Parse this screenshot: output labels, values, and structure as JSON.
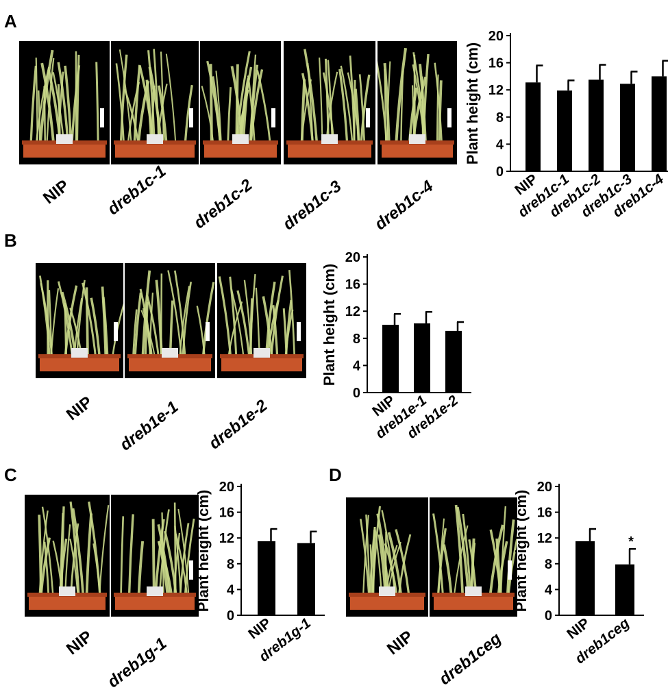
{
  "panels": {
    "A": {
      "letter": "A",
      "photo_labels": [
        "NIP",
        "dreb1c-1",
        "dreb1c-2",
        "dreb1c-3",
        "dreb1c-4"
      ]
    },
    "B": {
      "letter": "B",
      "photo_labels": [
        "NIP",
        "dreb1e-1",
        "dreb1e-2"
      ]
    },
    "C": {
      "letter": "C",
      "photo_labels": [
        "NIP",
        "dreb1g-1"
      ]
    },
    "D": {
      "letter": "D",
      "photo_labels": [
        "NIP",
        "dreb1ceg"
      ]
    }
  },
  "colors": {
    "bar": "#000000",
    "soil_tray": "#c8552a",
    "leaf": "#c9d88a",
    "photo_bg": "#000000"
  },
  "chart_data": [
    {
      "panel": "A",
      "type": "bar",
      "categories": [
        "NIP",
        "dreb1c-1",
        "dreb1c-2",
        "dreb1c-3",
        "dreb1c-4"
      ],
      "values": [
        13.1,
        11.9,
        13.5,
        12.9,
        14.0
      ],
      "errors": [
        2.5,
        1.5,
        2.2,
        1.8,
        2.3
      ],
      "ylabel": "Plant height (cm)",
      "ylim": [
        0,
        20
      ],
      "yticks": [
        0,
        4,
        8,
        12,
        16,
        20
      ],
      "annotations": []
    },
    {
      "panel": "B",
      "type": "bar",
      "categories": [
        "NIP",
        "dreb1e-1",
        "dreb1e-2"
      ],
      "values": [
        10.0,
        10.2,
        9.1
      ],
      "errors": [
        1.6,
        1.7,
        1.3
      ],
      "ylabel": "Plant height (cm)",
      "ylim": [
        0,
        20
      ],
      "yticks": [
        0,
        4,
        8,
        12,
        16,
        20
      ],
      "annotations": []
    },
    {
      "panel": "C",
      "type": "bar",
      "categories": [
        "NIP",
        "dreb1g-1"
      ],
      "values": [
        11.5,
        11.2
      ],
      "errors": [
        1.9,
        1.8
      ],
      "ylabel": "Plant height (cm)",
      "ylim": [
        0,
        20
      ],
      "yticks": [
        0,
        4,
        8,
        12,
        16,
        20
      ],
      "annotations": []
    },
    {
      "panel": "D",
      "type": "bar",
      "categories": [
        "NIP",
        "dreb1ceg"
      ],
      "values": [
        11.5,
        7.9
      ],
      "errors": [
        1.9,
        2.4
      ],
      "ylabel": "Plant height (cm)",
      "ylim": [
        0,
        20
      ],
      "yticks": [
        0,
        4,
        8,
        12,
        16,
        20
      ],
      "annotations": [
        {
          "category": "dreb1ceg",
          "text": "*"
        }
      ]
    }
  ]
}
